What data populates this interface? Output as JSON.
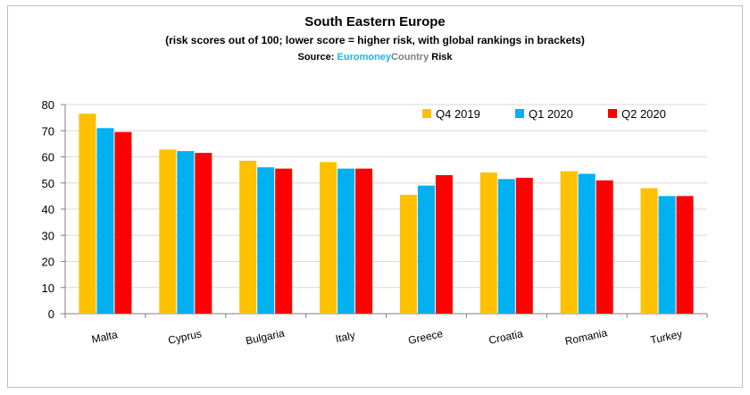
{
  "chart_data": {
    "type": "bar",
    "title": "South Eastern Europe",
    "subtitle": "(risk scores out of 100; lower score = higher risk, with global rankings in brackets)",
    "source": {
      "prefix": "Source:",
      "part1": "Euromoney",
      "part2": "Country",
      "part3": "Risk"
    },
    "categories": [
      "Malta",
      "Cyprus",
      "Bulgaria",
      "Italy",
      "Greece",
      "Croatia",
      "Romania",
      "Turkey"
    ],
    "series": [
      {
        "name": "Q4 2019",
        "color": "#ffc000",
        "values": [
          76.5,
          62.8,
          58.5,
          58.0,
          45.5,
          54.0,
          54.5,
          48.0
        ]
      },
      {
        "name": "Q1 2020",
        "color": "#00b0f0",
        "values": [
          71.0,
          62.2,
          56.0,
          55.5,
          49.0,
          51.5,
          53.5,
          45.0
        ]
      },
      {
        "name": "Q2 2020",
        "color": "#ff0000",
        "values": [
          69.5,
          61.5,
          55.5,
          55.5,
          53.0,
          52.0,
          51.0,
          45.0
        ]
      }
    ],
    "ylim": [
      0,
      80
    ],
    "yticks": [
      0,
      10,
      20,
      30,
      40,
      50,
      60,
      70,
      80
    ],
    "xlabel": "",
    "ylabel": "",
    "grid": true,
    "legend": "top-right"
  }
}
